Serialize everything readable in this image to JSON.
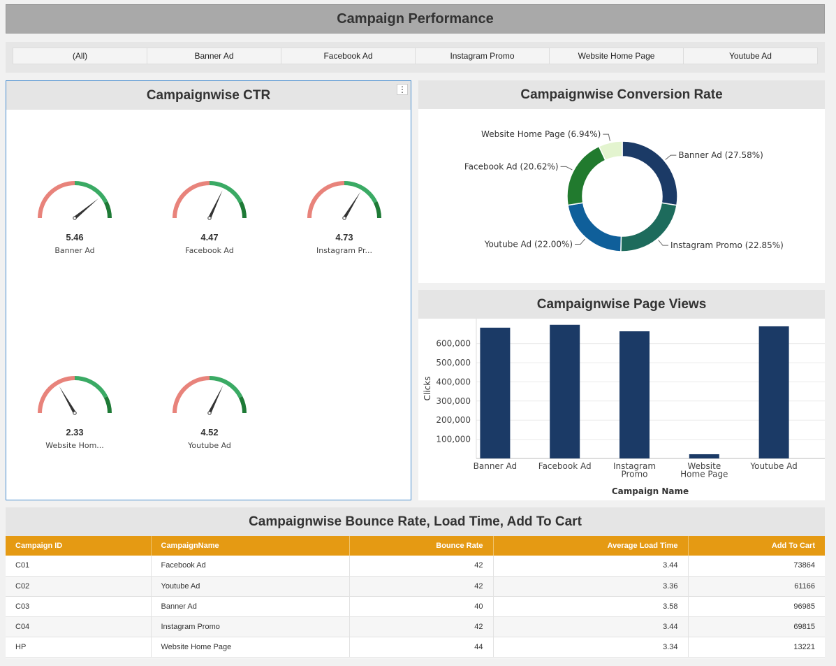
{
  "header": {
    "title": "Campaign Performance"
  },
  "filters": [
    "(All)",
    "Banner Ad",
    "Facebook Ad",
    "Instagram Promo",
    "Website Home Page",
    "Youtube Ad"
  ],
  "ctr_panel": {
    "title": "Campaignwise CTR",
    "menu_icon": "more-vertical-icon",
    "gauges": [
      {
        "label": "Banner Ad",
        "value": "5.46"
      },
      {
        "label": "Facebook Ad",
        "value": "4.47"
      },
      {
        "label": "Instagram Pr...",
        "value": "4.73"
      },
      {
        "label": "Website Hom...",
        "value": "2.33"
      },
      {
        "label": "Youtube Ad",
        "value": "4.52"
      }
    ],
    "colors": {
      "low": "#e8837b",
      "mid": "#3aaa64",
      "high": "#1e7a36",
      "needle": "#333333"
    }
  },
  "conversion_panel": {
    "title": "Campaignwise Conversion Rate",
    "chart_data": {
      "type": "pie",
      "slices": [
        {
          "label": "Banner Ad (27.58%)",
          "value": 27.58,
          "color": "#1b3a66"
        },
        {
          "label": "Instagram Promo (22.85%)",
          "value": 22.85,
          "color": "#1d6b5c"
        },
        {
          "label": "Youtube Ad (22.00%)",
          "value": 22.0,
          "color": "#0f5f9a"
        },
        {
          "label": "Facebook Ad (20.62%)",
          "value": 20.62,
          "color": "#217a2e"
        },
        {
          "label": "Website Home Page (6.94%)",
          "value": 6.94,
          "color": "#e3f4cf"
        }
      ]
    }
  },
  "views_panel": {
    "title": "Campaignwise Page Views",
    "chart_data": {
      "type": "bar",
      "categories": [
        "Banner Ad",
        "Facebook Ad",
        "Instagram Promo",
        "Website Home Page",
        "Youtube  Ad"
      ],
      "category_lines": [
        [
          "Banner Ad"
        ],
        [
          "Facebook Ad"
        ],
        [
          "Instagram",
          "Promo"
        ],
        [
          "Website",
          "Home Page"
        ],
        [
          "Youtube  Ad"
        ]
      ],
      "values": [
        683000,
        698000,
        664000,
        22000,
        690000
      ],
      "ylabel": "Clicks",
      "xlabel": "Campaign Name",
      "ylim": [
        0,
        730000
      ],
      "yticks": [
        "100,000",
        "200,000",
        "300,000",
        "400,000",
        "500,000",
        "600,000"
      ],
      "ytick_values": [
        100000,
        200000,
        300000,
        400000,
        500000,
        600000
      ],
      "bar_color": "#1b3a66"
    }
  },
  "table_panel": {
    "title": "Campaignwise Bounce Rate, Load Time, Add To Cart",
    "columns": [
      "Campaign ID",
      "CampaignName",
      "Bounce Rate",
      "Average Load Time",
      "Add To Cart"
    ],
    "rows": [
      [
        "C01",
        "Facebook Ad",
        "42",
        "3.44",
        "73864"
      ],
      [
        "C02",
        "Youtube Ad",
        "42",
        "3.36",
        "61166"
      ],
      [
        "C03",
        "Banner Ad",
        "40",
        "3.58",
        "96985"
      ],
      [
        "C04",
        "Instagram Promo",
        "42",
        "3.44",
        "69815"
      ],
      [
        "HP",
        "Website Home Page",
        "44",
        "3.34",
        "13221"
      ]
    ]
  }
}
